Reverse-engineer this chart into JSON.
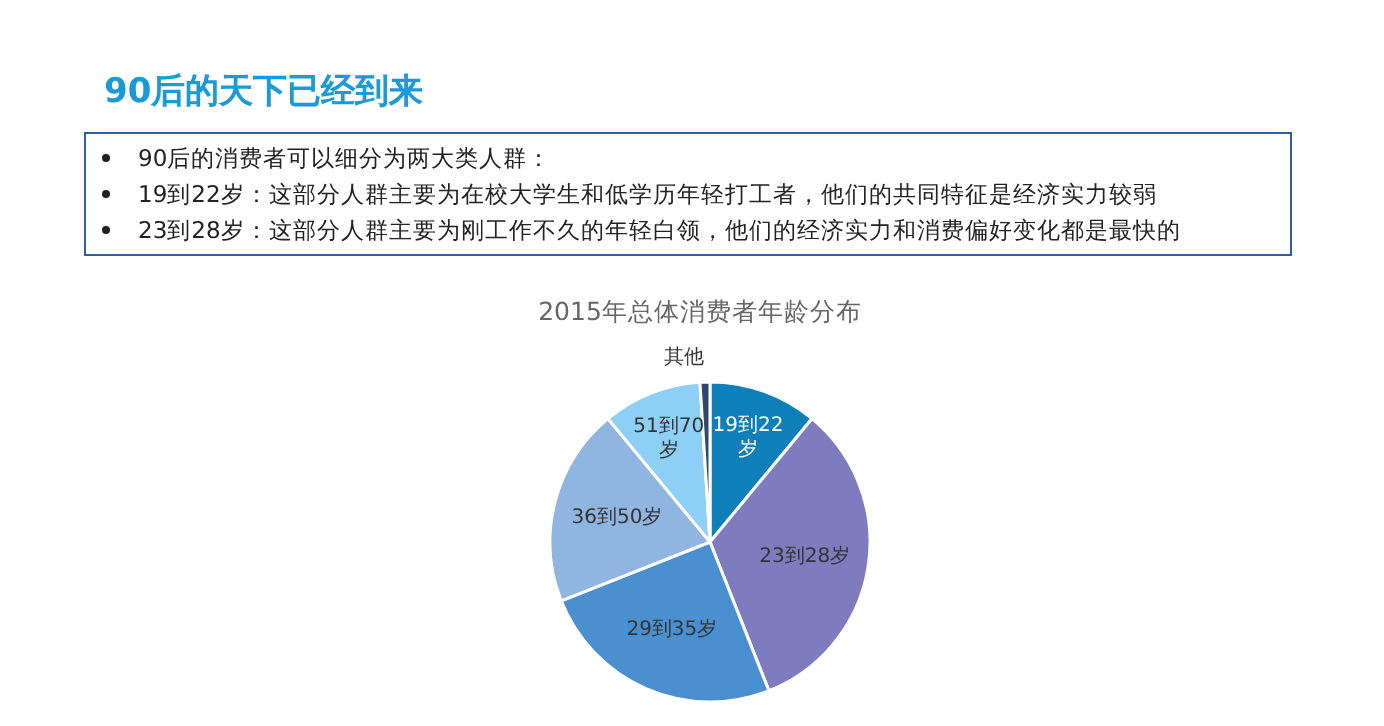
{
  "chart_data": {
    "type": "pie",
    "title": "90后的天下已经到来",
    "subtitle": "2015年总体消费者年龄分布",
    "annotations": [
      "90后的消费者可以细分为两大类人群：",
      "19到22岁：这部分人群主要为在校大学生和低学历年轻打工者，他们的共同特征是经济实力较弱",
      "23到28岁：这部分人群主要为刚工作不久的年轻白领，他们的经济实力和消费偏好变化都是最快的"
    ],
    "categories": [
      "19到22岁",
      "23到28岁",
      "29到35岁",
      "36到50岁",
      "51到70岁",
      "其他"
    ],
    "values": [
      11,
      33,
      25,
      20,
      10,
      1
    ],
    "colors": [
      "#0e7fb8",
      "#7f7bbf",
      "#4a90d0",
      "#8fb5e0",
      "#8dcff5",
      "#2d4a6a"
    ]
  }
}
